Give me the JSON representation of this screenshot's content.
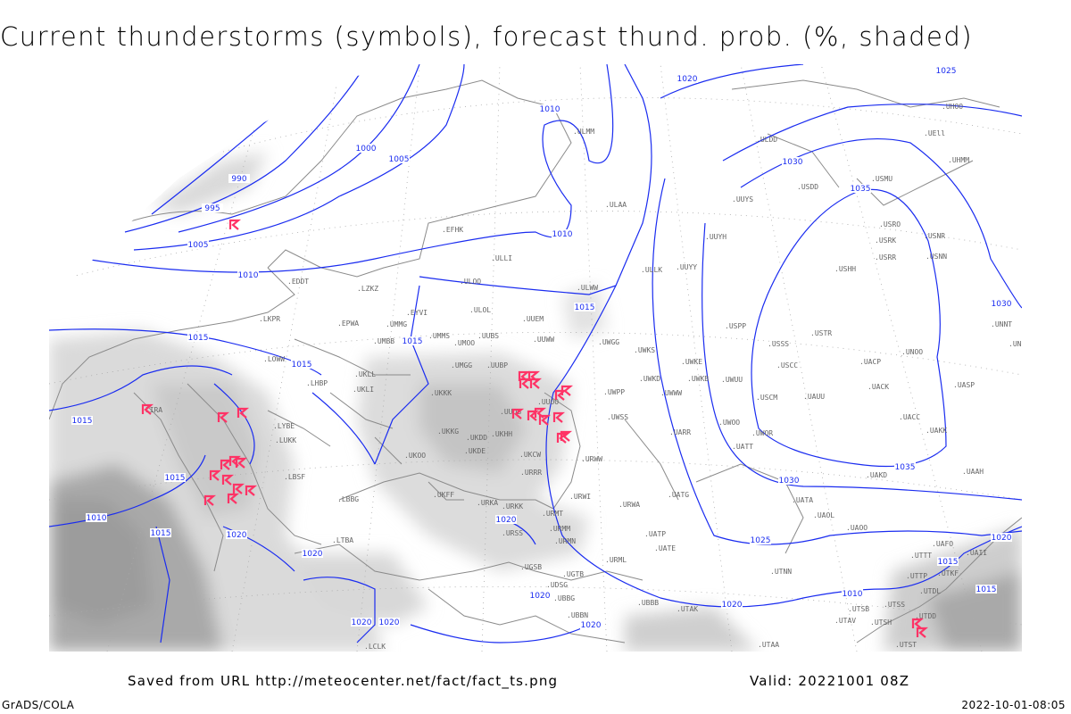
{
  "title": "Current thunderstorms (symbols), forecast thund. prob. (%, shaded)",
  "footer": {
    "saved_from": "Saved from URL http://meteocenter.net/fact/fact_ts.png",
    "valid": "Valid: 20221001 08Z",
    "software": "GrADS/COLA",
    "timestamp": "2022-10-01-08:05"
  },
  "colors": {
    "isobar": "#1a2cf0",
    "thunderstorm_symbol": "#ff3366",
    "coastline": "#8a8a8a",
    "shading_light": "#e2e2e2",
    "shading_dark": "#a8a8a8"
  },
  "legend": {
    "symbol_icon": "thunderstorm-icon",
    "shading": "forecast thunderstorm probability (%)"
  },
  "isobar_labels": [
    "990",
    "995",
    "1000",
    "1005",
    "1005",
    "1010",
    "1010",
    "1010",
    "1010",
    "1015",
    "1015",
    "1015",
    "1015",
    "1015",
    "1015",
    "1015",
    "1015",
    "1020",
    "1020",
    "1020",
    "1020",
    "1020",
    "1020",
    "1020",
    "1020",
    "1020",
    "1025",
    "1025",
    "1030",
    "1030",
    "1030",
    "1035",
    "1035",
    "1010",
    "1015",
    "1020"
  ],
  "stations": [
    "EDDT",
    "EPWA",
    "UMMG",
    "EYVI",
    "UMBB",
    "UMMS",
    "UMOO",
    "UUBS",
    "ULOL",
    "UUEM",
    "UUWW",
    "UWGG",
    "ULWW",
    "ULLK",
    "UUYY",
    "UUYH",
    "UUYS",
    "ULAA",
    "ULDD",
    "ULMM",
    "USDD",
    "USMU",
    "USRO",
    "USRK",
    "USNR",
    "USRR",
    "USNN",
    "USHH",
    "USPP",
    "USSS",
    "USTR",
    "USCC",
    "USCM",
    "UAUU",
    "UACP",
    "UNOO",
    "UACK",
    "UASP",
    "UACC",
    "UAKK",
    "UAKD",
    "UAAH",
    "UATT",
    "UWOO",
    "UWOR",
    "UARR",
    "UWSS",
    "UWPP",
    "UWKS",
    "UWKE",
    "UWKB",
    "UWUU",
    "UWWW",
    "UWKD",
    "URWA",
    "UATG",
    "UATA",
    "UAOL",
    "UAOO",
    "UATP",
    "UATE",
    "URML",
    "URMT",
    "URMM",
    "URMN",
    "URSS",
    "URKK",
    "URKA",
    "UKFF",
    "UKOO",
    "UKKG",
    "UKDD",
    "UKHH",
    "UKDE",
    "UKKK",
    "UKLL",
    "UKLI",
    "UUOB",
    "UUOO",
    "UUBP",
    "UMGG",
    "UKCW",
    "URRR",
    "URWI",
    "URWW",
    "UGTB",
    "UGSB",
    "UDSG",
    "UBBG",
    "UBBN",
    "UBBB",
    "UTAK",
    "UTAA",
    "UTNN",
    "UTTT",
    "UTTP",
    "UTDL",
    "UTDD",
    "UTSS",
    "UTSB",
    "UTAV",
    "UTSH",
    "UTST",
    "UTKF",
    "UAFO",
    "UAII",
    "LIRA",
    "LKPR",
    "LOWW",
    "LHBP",
    "LYBE",
    "LBSF",
    "LBBG",
    "LTBA",
    "LCLK",
    "EFHK",
    "ULLI",
    "ULOO",
    "UHOO",
    "UEll",
    "UHMM",
    "LZKZ",
    "LUKK",
    "UNNT",
    "UNBB"
  ]
}
